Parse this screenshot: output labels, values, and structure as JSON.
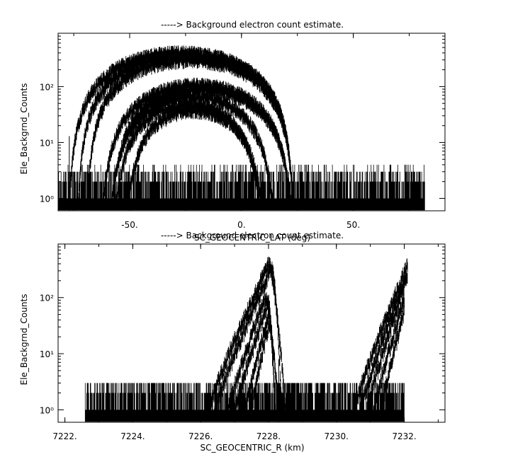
{
  "chart_data": [
    {
      "type": "line",
      "title": "-----> Background electron count estimate.",
      "xlabel": "SC_GEOCENTRIC_LAT (deg)",
      "ylabel": "Ele_Backgrnd_Counts",
      "xlim": [
        -82,
        91
      ],
      "ylim": [
        0.6,
        900
      ],
      "yscale": "log",
      "grid": false,
      "x_ticks": [
        {
          "v": -50,
          "label": "-50."
        },
        {
          "v": 0,
          "label": "0."
        },
        {
          "v": 50,
          "label": "50."
        }
      ],
      "y_ticks": [
        {
          "v": 1,
          "label": "10⁰"
        },
        {
          "v": 10,
          "label": "10¹"
        },
        {
          "v": 100,
          "label": "10²"
        }
      ],
      "noise": {
        "x_range": [
          -82,
          82
        ],
        "floor": [
          1,
          4
        ],
        "spike": {
          "x": -77,
          "y": 13
        }
      },
      "series": [
        {
          "center": -27,
          "peak": 420,
          "halfwidth": 50
        },
        {
          "center": -25,
          "peak": 380,
          "halfwidth": 48
        },
        {
          "center": -23,
          "peak": 320,
          "halfwidth": 46
        },
        {
          "center": -20,
          "peak": 110,
          "halfwidth": 42
        },
        {
          "center": -18,
          "peak": 95,
          "halfwidth": 40
        },
        {
          "center": -22,
          "peak": 70,
          "halfwidth": 36
        },
        {
          "center": -24,
          "peak": 50,
          "halfwidth": 32
        },
        {
          "center": -21,
          "peak": 40,
          "halfwidth": 30
        }
      ]
    },
    {
      "type": "line",
      "title": "-----> Background electron count estimate.",
      "xlabel": "SC_GEOCENTRIC_R (km)",
      "ylabel": "Ele_Backgrnd_Counts",
      "xlim": [
        7221.8,
        7233.2
      ],
      "ylim": [
        0.6,
        900
      ],
      "yscale": "log",
      "grid": false,
      "x_ticks": [
        {
          "v": 7222,
          "label": "7222."
        },
        {
          "v": 7224,
          "label": "7224."
        },
        {
          "v": 7226,
          "label": "7226."
        },
        {
          "v": 7228,
          "label": "7228."
        },
        {
          "v": 7230,
          "label": "7230."
        },
        {
          "v": 7232,
          "label": "7232."
        }
      ],
      "y_ticks": [
        {
          "v": 1,
          "label": "10⁰"
        },
        {
          "v": 10,
          "label": "10¹"
        },
        {
          "v": 100,
          "label": "10²"
        }
      ],
      "noise": {
        "x_range": [
          7222.6,
          7232.0
        ],
        "floor": [
          1,
          3
        ],
        "spike": {
          "x": 7228.3,
          "y": 8
        }
      },
      "series": [
        {
          "x0": 7226.2,
          "xpeak": 7228.0,
          "x1": 7228.5,
          "peak": 420
        },
        {
          "x0": 7226.4,
          "xpeak": 7228.1,
          "x1": 7228.4,
          "peak": 380
        },
        {
          "x0": 7226.8,
          "xpeak": 7227.9,
          "x1": 7228.3,
          "peak": 110
        },
        {
          "x0": 7227.0,
          "xpeak": 7228.0,
          "x1": 7228.2,
          "peak": 90
        },
        {
          "x0": 7227.3,
          "xpeak": 7228.0,
          "x1": 7228.2,
          "peak": 50
        },
        {
          "x0": 7227.5,
          "xpeak": 7228.0,
          "x1": 7228.3,
          "peak": 35
        },
        {
          "x0": 7230.5,
          "xpeak": 7232.1,
          "peak": 400
        },
        {
          "x0": 7230.7,
          "xpeak": 7232.1,
          "peak": 300
        },
        {
          "x0": 7230.9,
          "xpeak": 7232.0,
          "peak": 180
        },
        {
          "x0": 7231.1,
          "xpeak": 7232.0,
          "peak": 100
        },
        {
          "x0": 7231.3,
          "xpeak": 7232.0,
          "peak": 60
        }
      ]
    }
  ]
}
